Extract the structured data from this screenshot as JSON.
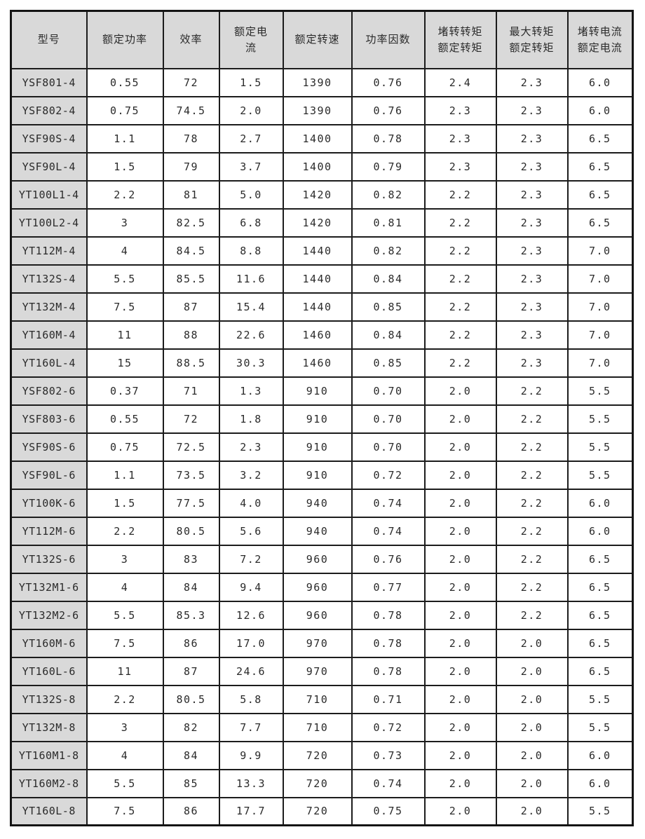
{
  "colors": {
    "header_background": "#d9d9d9",
    "model_column_background": "#d9d9d9",
    "grid_border": "#1c1c1c",
    "text": "#2a2a2a",
    "page_background": "#ffffff"
  },
  "table": {
    "headers": [
      {
        "id": "model",
        "label": "型号"
      },
      {
        "id": "rated-power",
        "label": "额定功率"
      },
      {
        "id": "efficiency",
        "label": "效率"
      },
      {
        "id": "rated-current",
        "label": "额定电流"
      },
      {
        "id": "rated-speed",
        "label": "额定转速"
      },
      {
        "id": "power-factor",
        "label": "功率因数"
      },
      {
        "id": "locked-rotor-torque-over-rated-torque",
        "label": "堵转转矩\n额定转矩"
      },
      {
        "id": "max-torque-over-rated-torque",
        "label": "最大转矩\n额定转矩"
      },
      {
        "id": "locked-rotor-current-over-rated-current",
        "label": "堵转电流\n额定电流"
      }
    ],
    "rows": [
      [
        "YSF801-4",
        "0.55",
        "72",
        "1.5",
        "1390",
        "0.76",
        "2.4",
        "2.3",
        "6.0"
      ],
      [
        "YSF802-4",
        "0.75",
        "74.5",
        "2.0",
        "1390",
        "0.76",
        "2.3",
        "2.3",
        "6.0"
      ],
      [
        "YSF90S-4",
        "1.1",
        "78",
        "2.7",
        "1400",
        "0.78",
        "2.3",
        "2.3",
        "6.5"
      ],
      [
        "YSF90L-4",
        "1.5",
        "79",
        "3.7",
        "1400",
        "0.79",
        "2.3",
        "2.3",
        "6.5"
      ],
      [
        "YT100L1-4",
        "2.2",
        "81",
        "5.0",
        "1420",
        "0.82",
        "2.2",
        "2.3",
        "6.5"
      ],
      [
        "YT100L2-4",
        "3",
        "82.5",
        "6.8",
        "1420",
        "0.81",
        "2.2",
        "2.3",
        "6.5"
      ],
      [
        "YT112M-4",
        "4",
        "84.5",
        "8.8",
        "1440",
        "0.82",
        "2.2",
        "2.3",
        "7.0"
      ],
      [
        "YT132S-4",
        "5.5",
        "85.5",
        "11.6",
        "1440",
        "0.84",
        "2.2",
        "2.3",
        "7.0"
      ],
      [
        "YT132M-4",
        "7.5",
        "87",
        "15.4",
        "1440",
        "0.85",
        "2.2",
        "2.3",
        "7.0"
      ],
      [
        "YT160M-4",
        "11",
        "88",
        "22.6",
        "1460",
        "0.84",
        "2.2",
        "2.3",
        "7.0"
      ],
      [
        "YT160L-4",
        "15",
        "88.5",
        "30.3",
        "1460",
        "0.85",
        "2.2",
        "2.3",
        "7.0"
      ],
      [
        "YSF802-6",
        "0.37",
        "71",
        "1.3",
        "910",
        "0.70",
        "2.0",
        "2.2",
        "5.5"
      ],
      [
        "YSF803-6",
        "0.55",
        "72",
        "1.8",
        "910",
        "0.70",
        "2.0",
        "2.2",
        "5.5"
      ],
      [
        "YSF90S-6",
        "0.75",
        "72.5",
        "2.3",
        "910",
        "0.70",
        "2.0",
        "2.2",
        "5.5"
      ],
      [
        "YSF90L-6",
        "1.1",
        "73.5",
        "3.2",
        "910",
        "0.72",
        "2.0",
        "2.2",
        "5.5"
      ],
      [
        "YT100K-6",
        "1.5",
        "77.5",
        "4.0",
        "940",
        "0.74",
        "2.0",
        "2.2",
        "6.0"
      ],
      [
        "YT112M-6",
        "2.2",
        "80.5",
        "5.6",
        "940",
        "0.74",
        "2.0",
        "2.2",
        "6.0"
      ],
      [
        "YT132S-6",
        "3",
        "83",
        "7.2",
        "960",
        "0.76",
        "2.0",
        "2.2",
        "6.5"
      ],
      [
        "YT132M1-6",
        "4",
        "84",
        "9.4",
        "960",
        "0.77",
        "2.0",
        "2.2",
        "6.5"
      ],
      [
        "YT132M2-6",
        "5.5",
        "85.3",
        "12.6",
        "960",
        "0.78",
        "2.0",
        "2.2",
        "6.5"
      ],
      [
        "YT160M-6",
        "7.5",
        "86",
        "17.0",
        "970",
        "0.78",
        "2.0",
        "2.0",
        "6.5"
      ],
      [
        "YT160L-6",
        "11",
        "87",
        "24.6",
        "970",
        "0.78",
        "2.0",
        "2.0",
        "6.5"
      ],
      [
        "YT132S-8",
        "2.2",
        "80.5",
        "5.8",
        "710",
        "0.71",
        "2.0",
        "2.0",
        "5.5"
      ],
      [
        "YT132M-8",
        "3",
        "82",
        "7.7",
        "710",
        "0.72",
        "2.0",
        "2.0",
        "5.5"
      ],
      [
        "YT160M1-8",
        "4",
        "84",
        "9.9",
        "720",
        "0.73",
        "2.0",
        "2.0",
        "6.0"
      ],
      [
        "YT160M2-8",
        "5.5",
        "85",
        "13.3",
        "720",
        "0.74",
        "2.0",
        "2.0",
        "6.0"
      ],
      [
        "YT160L-8",
        "7.5",
        "86",
        "17.7",
        "720",
        "0.75",
        "2.0",
        "2.0",
        "5.5"
      ]
    ]
  }
}
